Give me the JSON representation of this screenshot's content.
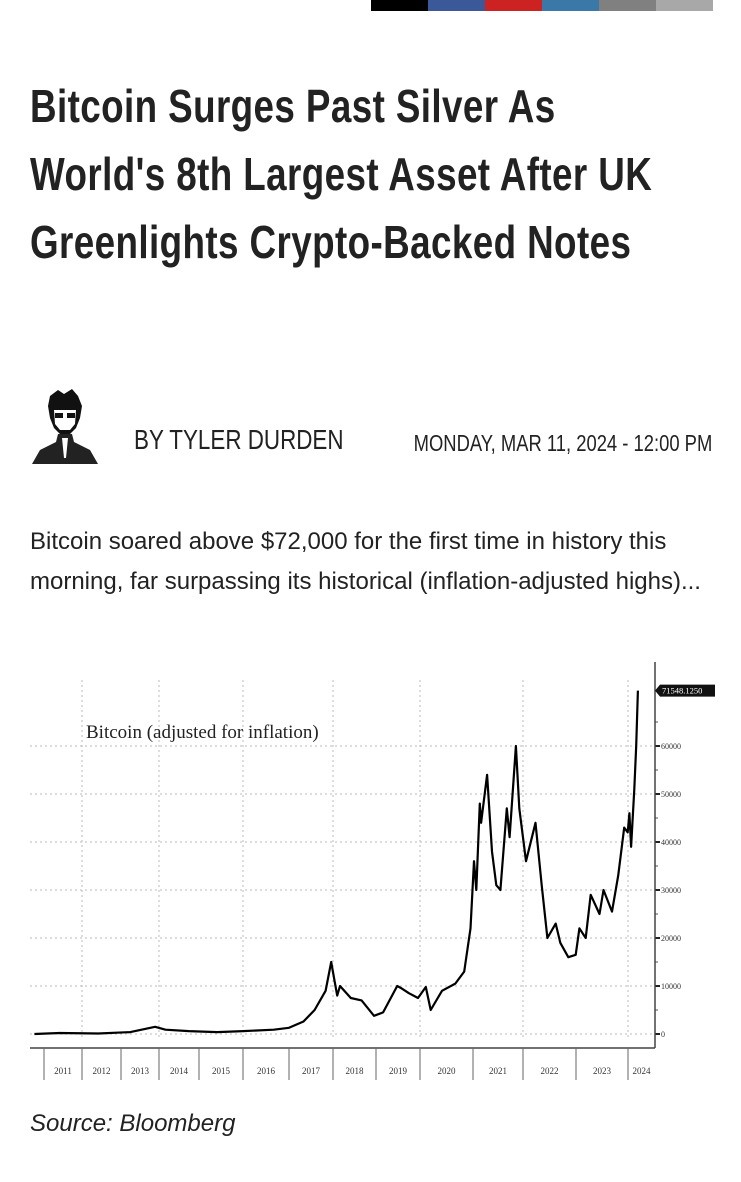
{
  "share_bar": {
    "colors": [
      "#000000",
      "#3b5998",
      "#cc2222",
      "#3a78a8",
      "#808080",
      "#a8a8a8"
    ]
  },
  "article": {
    "title": "Bitcoin Surges Past Silver As World's 8th Largest Asset After UK Greenlights Crypto-Backed Notes",
    "byline": "BY TYLER DURDEN",
    "date": "MONDAY, MAR 11, 2024 - 12:00 PM",
    "lede": "Bitcoin soared above $72,000 for the first time in history this morning, far surpassing its historical (inflation-adjusted highs)...",
    "source": "Source: Bloomberg"
  },
  "chart_data": {
    "type": "line",
    "title": "Bitcoin (adjusted for inflation)",
    "x_ticks": [
      "2011",
      "2012",
      "2013",
      "2014",
      "2015",
      "2016",
      "2017",
      "2018",
      "2019",
      "2020",
      "2021",
      "2022",
      "2023",
      "2024"
    ],
    "y_ticks": [
      0,
      10000,
      20000,
      30000,
      40000,
      50000,
      60000
    ],
    "ylim": [
      0,
      75000
    ],
    "grid": true,
    "last_value_label": "71548.1250",
    "line_color": "#000000",
    "points": [
      [
        "2010-10-01",
        0
      ],
      [
        "2011-06-01",
        200
      ],
      [
        "2012-06-01",
        100
      ],
      [
        "2013-04-01",
        400
      ],
      [
        "2013-11-25",
        1500
      ],
      [
        "2014-03-01",
        900
      ],
      [
        "2014-10-01",
        600
      ],
      [
        "2015-06-01",
        400
      ],
      [
        "2016-01-01",
        600
      ],
      [
        "2016-09-01",
        900
      ],
      [
        "2017-01-01",
        1300
      ],
      [
        "2017-05-01",
        2600
      ],
      [
        "2017-08-01",
        5000
      ],
      [
        "2017-11-01",
        9000
      ],
      [
        "2017-12-17",
        15000
      ],
      [
        "2018-01-15",
        11000
      ],
      [
        "2018-02-06",
        8000
      ],
      [
        "2018-03-01",
        10000
      ],
      [
        "2018-06-01",
        7500
      ],
      [
        "2018-09-01",
        7000
      ],
      [
        "2018-12-15",
        3800
      ],
      [
        "2019-03-01",
        4500
      ],
      [
        "2019-06-26",
        10000
      ],
      [
        "2019-08-01",
        9500
      ],
      [
        "2019-10-01",
        8500
      ],
      [
        "2019-12-15",
        7500
      ],
      [
        "2020-02-10",
        9800
      ],
      [
        "2020-03-15",
        5000
      ],
      [
        "2020-06-01",
        9000
      ],
      [
        "2020-09-01",
        10500
      ],
      [
        "2020-11-01",
        13000
      ],
      [
        "2020-12-15",
        22000
      ],
      [
        "2021-01-08",
        36000
      ],
      [
        "2021-01-25",
        30000
      ],
      [
        "2021-02-20",
        48000
      ],
      [
        "2021-03-01",
        44000
      ],
      [
        "2021-04-14",
        54000
      ],
      [
        "2021-05-20",
        38000
      ],
      [
        "2021-06-20",
        31000
      ],
      [
        "2021-07-20",
        30000
      ],
      [
        "2021-09-05",
        47000
      ],
      [
        "2021-09-25",
        41000
      ],
      [
        "2021-11-10",
        60000
      ],
      [
        "2021-12-05",
        47000
      ],
      [
        "2022-01-22",
        36000
      ],
      [
        "2022-03-28",
        44000
      ],
      [
        "2022-05-10",
        31000
      ],
      [
        "2022-06-18",
        20000
      ],
      [
        "2022-08-14",
        23000
      ],
      [
        "2022-09-15",
        19000
      ],
      [
        "2022-11-09",
        16000
      ],
      [
        "2022-12-30",
        16500
      ],
      [
        "2023-01-25",
        22000
      ],
      [
        "2023-03-10",
        20000
      ],
      [
        "2023-04-14",
        29000
      ],
      [
        "2023-06-15",
        25000
      ],
      [
        "2023-07-13",
        30000
      ],
      [
        "2023-09-11",
        25500
      ],
      [
        "2023-10-24",
        33000
      ],
      [
        "2023-12-05",
        43000
      ],
      [
        "2023-12-30",
        42000
      ],
      [
        "2024-01-11",
        46000
      ],
      [
        "2024-01-23",
        39000
      ],
      [
        "2024-02-14",
        51000
      ],
      [
        "2024-02-28",
        60000
      ],
      [
        "2024-03-11",
        71548
      ]
    ]
  }
}
